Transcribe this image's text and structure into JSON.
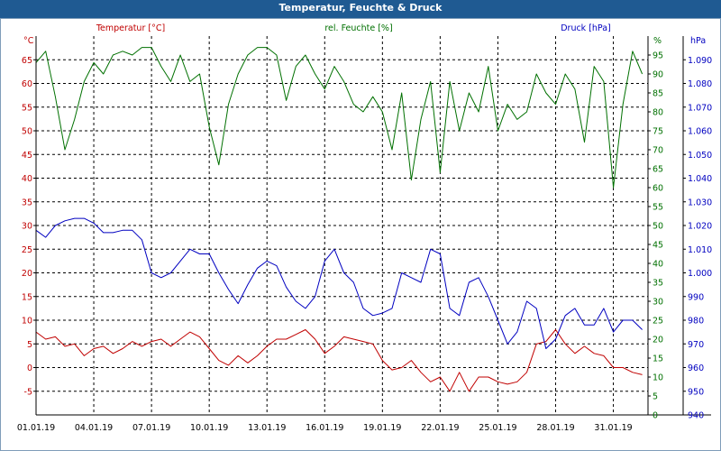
{
  "window": {
    "title": "Temperatur, Feuchte & Druck"
  },
  "colors": {
    "temperature": "#c00000",
    "humidity": "#007000",
    "pressure": "#0000c0",
    "grid": "#000000",
    "titlebar": "#1f5a92"
  },
  "chart_data": {
    "type": "line",
    "title": "Temperatur, Feuchte & Druck",
    "x_tick_labels": [
      "01.01.19",
      "04.01.19",
      "07.01.19",
      "10.01.19",
      "13.01.19",
      "16.01.19",
      "19.01.19",
      "22.01.19",
      "25.01.19",
      "28.01.19",
      "31.01.19"
    ],
    "x_range": [
      "01.01.19",
      "01.02.19"
    ],
    "grid": true,
    "axes": {
      "temperature": {
        "name": "Temperatur [°C]",
        "unit": "°C",
        "side": "left",
        "range": [
          -10,
          70
        ],
        "ticks": [
          "-5",
          "0",
          "5",
          "10",
          "15",
          "20",
          "25",
          "30",
          "35",
          "40",
          "45",
          "50",
          "55",
          "60",
          "65"
        ]
      },
      "humidity": {
        "name": "rel. Feuchte [%]",
        "unit": "%",
        "side": "right-inner",
        "range": [
          0,
          100
        ],
        "ticks": [
          "0",
          "5",
          "10",
          "15",
          "20",
          "25",
          "30",
          "35",
          "40",
          "45",
          "50",
          "55",
          "60",
          "65",
          "70",
          "75",
          "80",
          "85",
          "90",
          "95"
        ]
      },
      "pressure": {
        "name": "Druck [hPa]",
        "unit": "hPa",
        "side": "right-outer",
        "range": [
          940,
          1100
        ],
        "ticks": [
          "940",
          "950",
          "960",
          "970",
          "980",
          "990",
          "1.000",
          "1.010",
          "1.020",
          "1.030",
          "1.040",
          "1.050",
          "1.060",
          "1.070",
          "1.080",
          "1.090"
        ]
      }
    },
    "series": [
      {
        "name": "Temperatur [°C]",
        "axis": "temperature",
        "color": "#c00000",
        "x": [
          0,
          0.5,
          1,
          1.5,
          2,
          2.5,
          3,
          3.5,
          4,
          4.5,
          5,
          5.5,
          6,
          6.5,
          7,
          7.5,
          8,
          8.5,
          9,
          9.5,
          10,
          10.5,
          11,
          11.5,
          12,
          12.5,
          13,
          13.5,
          14,
          14.5,
          15,
          15.5,
          16,
          16.5,
          17,
          17.5,
          18,
          18.5,
          19,
          19.5,
          20,
          20.5,
          21,
          21.5,
          22,
          22.5,
          23,
          23.5,
          24,
          24.5,
          25,
          25.5,
          26,
          26.5,
          27,
          27.5,
          28,
          28.5,
          29,
          29.5,
          30,
          30.5,
          31,
          31.5
        ],
        "values": [
          7.5,
          6,
          6.5,
          4.5,
          5,
          2.5,
          4,
          4.5,
          3,
          4,
          5.5,
          4.5,
          5.5,
          6,
          4.5,
          6,
          7.5,
          6.5,
          4,
          1.5,
          0.5,
          2.5,
          1,
          2.5,
          4.5,
          6,
          6,
          7,
          8,
          6,
          3,
          4.5,
          6.5,
          6,
          5.5,
          5,
          1.5,
          -0.5,
          0,
          1.5,
          -1,
          -3,
          -2,
          -5,
          -1,
          -5,
          -2,
          -2,
          -3,
          -3.5,
          -3,
          -1,
          5,
          5.5,
          8,
          5,
          3,
          4.5,
          3,
          2.5,
          0,
          0,
          -1,
          -1.5
        ]
      },
      {
        "name": "rel. Feuchte [%]",
        "axis": "humidity",
        "color": "#007000",
        "x": [
          0,
          0.5,
          1,
          1.5,
          2,
          2.5,
          3,
          3.5,
          4,
          4.5,
          5,
          5.5,
          6,
          6.5,
          7,
          7.5,
          8,
          8.5,
          9,
          9.5,
          10,
          10.5,
          11,
          11.5,
          12,
          12.5,
          13,
          13.5,
          14,
          14.5,
          15,
          15.5,
          16,
          16.5,
          17,
          17.5,
          18,
          18.5,
          19,
          19.5,
          20,
          20.5,
          21,
          21.5,
          22,
          22.5,
          23,
          23.5,
          24,
          24.5,
          25,
          25.5,
          26,
          26.5,
          27,
          27.5,
          28,
          28.5,
          29,
          29.5,
          30,
          30.5,
          31,
          31.5
        ],
        "values": [
          93,
          96,
          84,
          70,
          78,
          88,
          93,
          90,
          95,
          96,
          95,
          97,
          97,
          92,
          88,
          95,
          88,
          90,
          76,
          66,
          82,
          90,
          95,
          97,
          97,
          95,
          83,
          92,
          95,
          90,
          86,
          92,
          88,
          82,
          80,
          84,
          80,
          70,
          85,
          62,
          78,
          88,
          64,
          88,
          75,
          85,
          80,
          92,
          75,
          82,
          78,
          80,
          90,
          85,
          82,
          90,
          86,
          72,
          92,
          88,
          60,
          82,
          96,
          90
        ]
      },
      {
        "name": "Druck [hPa]",
        "axis": "pressure",
        "color": "#0000c0",
        "x": [
          0,
          0.5,
          1,
          1.5,
          2,
          2.5,
          3,
          3.5,
          4,
          4.5,
          5,
          5.5,
          6,
          6.5,
          7,
          7.5,
          8,
          8.5,
          9,
          9.5,
          10,
          10.5,
          11,
          11.5,
          12,
          12.5,
          13,
          13.5,
          14,
          14.5,
          15,
          15.5,
          16,
          16.5,
          17,
          17.5,
          18,
          18.5,
          19,
          19.5,
          20,
          20.5,
          21,
          21.5,
          22,
          22.5,
          23,
          23.5,
          24,
          24.5,
          25,
          25.5,
          26,
          26.5,
          27,
          27.5,
          28,
          28.5,
          29,
          29.5,
          30,
          30.5,
          31,
          31.5
        ],
        "values": [
          1018,
          1015,
          1020,
          1022,
          1023,
          1023,
          1021,
          1017,
          1017,
          1018,
          1018,
          1014,
          1000,
          998,
          1000,
          1005,
          1010,
          1008,
          1008,
          1000,
          993,
          987,
          995,
          1002,
          1005,
          1003,
          994,
          988,
          985,
          990,
          1005,
          1010,
          1000,
          996,
          985,
          982,
          983,
          985,
          1000,
          998,
          996,
          1010,
          1008,
          985,
          982,
          996,
          998,
          990,
          980,
          970,
          975,
          988,
          985,
          968,
          972,
          982,
          985,
          978,
          978,
          985,
          975,
          980,
          980,
          976
        ]
      }
    ]
  }
}
